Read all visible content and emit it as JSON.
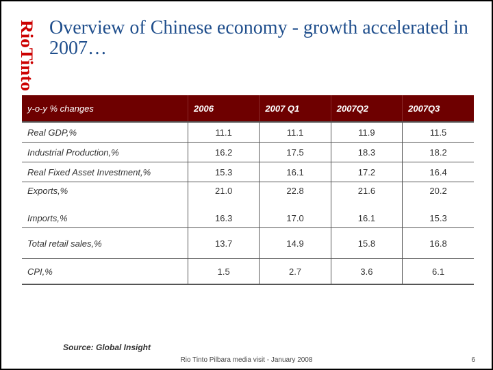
{
  "logo": {
    "text": "RioTinto",
    "color": "#cc0000"
  },
  "title": "Overview of Chinese economy - growth accelerated in 2007…",
  "table": {
    "header_color": "#6e0000",
    "columns": [
      "y-o-y % changes",
      "2006",
      "2007 Q1",
      "2007Q2",
      "2007Q3"
    ],
    "rows": {
      "gdp": {
        "label": "Real GDP,%",
        "values": [
          "11.1",
          "11.1",
          "11.9",
          "11.5"
        ]
      },
      "industrial": {
        "label": "Industrial Production,%",
        "values": [
          "16.2",
          "17.5",
          "18.3",
          "18.2"
        ]
      },
      "fixed_asset": {
        "label": "Real Fixed Asset Investment,%",
        "values": [
          "15.3",
          "16.1",
          "17.2",
          "16.4"
        ]
      },
      "exports": {
        "label": "Exports,%",
        "values": [
          "21.0",
          "22.8",
          "21.6",
          "20.2"
        ]
      },
      "imports": {
        "label": "Imports,%",
        "values": [
          "16.3",
          "17.0",
          "16.1",
          "15.3"
        ]
      },
      "retail": {
        "label": "Total retail sales,%",
        "values": [
          "13.7",
          "14.9",
          "15.8",
          "16.8"
        ]
      },
      "cpi": {
        "label": "CPI,%",
        "values": [
          "1.5",
          "2.7",
          "3.6",
          "6.1"
        ]
      }
    }
  },
  "source": "Source: Global Insight",
  "footer": "Rio Tinto Pilbara media visit - January 2008",
  "page_number": "6"
}
